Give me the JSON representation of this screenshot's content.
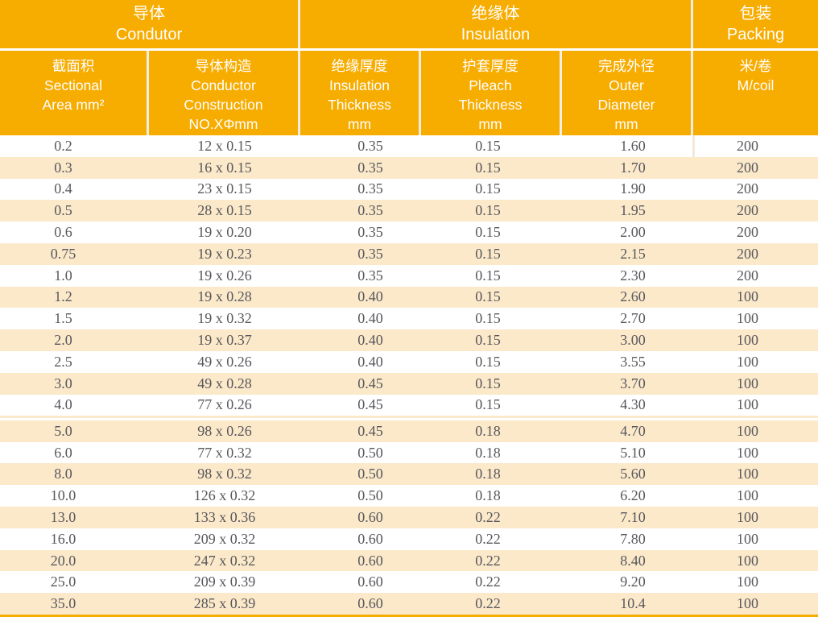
{
  "table": {
    "colors": {
      "header_orange": "#F7AC00",
      "stripe_beige": "#FBE9CA",
      "row_text_gray": "#58575C",
      "header_text": "#FFFFFF"
    },
    "groups": [
      {
        "zh": "导体",
        "en": "Condutor"
      },
      {
        "zh": "绝缘体",
        "en": "Insulation"
      },
      {
        "zh": "包装",
        "en": "Packing"
      }
    ],
    "columns": [
      {
        "key": "sectional-area",
        "lines": [
          "截面积",
          "Sectional",
          "Area mm²"
        ]
      },
      {
        "key": "conductor-construction",
        "lines": [
          "导体构造",
          "Conductor",
          "Construction",
          "NO.XΦmm"
        ]
      },
      {
        "key": "insulation-thickness",
        "lines": [
          "绝缘厚度",
          "Insulation",
          "Thickness",
          "mm"
        ]
      },
      {
        "key": "pleach-thickness",
        "lines": [
          "护套厚度",
          "Pleach",
          "Thickness",
          "mm"
        ]
      },
      {
        "key": "outer-diameter",
        "lines": [
          "完成外径",
          "Outer",
          "Diameter",
          "mm"
        ]
      },
      {
        "key": "m-per-coil",
        "lines": [
          "米/卷",
          "M/coil"
        ]
      }
    ],
    "separator_before_row": 13,
    "rows": [
      [
        "0.2",
        "12 x 0.15",
        "0.35",
        "0.15",
        "1.60",
        "200"
      ],
      [
        "0.3",
        "16 x 0.15",
        "0.35",
        "0.15",
        "1.70",
        "200"
      ],
      [
        "0.4",
        "23 x 0.15",
        "0.35",
        "0.15",
        "1.90",
        "200"
      ],
      [
        "0.5",
        "28 x 0.15",
        "0.35",
        "0.15",
        "1.95",
        "200"
      ],
      [
        "0.6",
        "19 x 0.20",
        "0.35",
        "0.15",
        "2.00",
        "200"
      ],
      [
        "0.75",
        "19 x 0.23",
        "0.35",
        "0.15",
        "2.15",
        "200"
      ],
      [
        "1.0",
        "19 x 0.26",
        "0.35",
        "0.15",
        "2.30",
        "200"
      ],
      [
        "1.2",
        "19 x 0.28",
        "0.40",
        "0.15",
        "2.60",
        "100"
      ],
      [
        "1.5",
        "19 x 0.32",
        "0.40",
        "0.15",
        "2.70",
        "100"
      ],
      [
        "2.0",
        "19 x 0.37",
        "0.40",
        "0.15",
        "3.00",
        "100"
      ],
      [
        "2.5",
        "49 x 0.26",
        "0.40",
        "0.15",
        "3.55",
        "100"
      ],
      [
        "3.0",
        "49 x 0.28",
        "0.45",
        "0.15",
        "3.70",
        "100"
      ],
      [
        "4.0",
        "77 x 0.26",
        "0.45",
        "0.15",
        "4.30",
        "100"
      ],
      [
        "5.0",
        "98 x 0.26",
        "0.45",
        "0.18",
        "4.70",
        "100"
      ],
      [
        "6.0",
        "77 x 0.32",
        "0.50",
        "0.18",
        "5.10",
        "100"
      ],
      [
        "8.0",
        "98 x 0.32",
        "0.50",
        "0.18",
        "5.60",
        "100"
      ],
      [
        "10.0",
        "126 x 0.32",
        "0.50",
        "0.18",
        "6.20",
        "100"
      ],
      [
        "13.0",
        "133 x 0.36",
        "0.60",
        "0.22",
        "7.10",
        "100"
      ],
      [
        "16.0",
        "209 x 0.32",
        "0.60",
        "0.22",
        "7.80",
        "100"
      ],
      [
        "20.0",
        "247 x 0.32",
        "0.60",
        "0.22",
        "8.40",
        "100"
      ],
      [
        "25.0",
        "209 x 0.39",
        "0.60",
        "0.22",
        "9.20",
        "100"
      ],
      [
        "35.0",
        "285 x 0.39",
        "0.60",
        "0.22",
        "10.4",
        "100"
      ]
    ]
  }
}
